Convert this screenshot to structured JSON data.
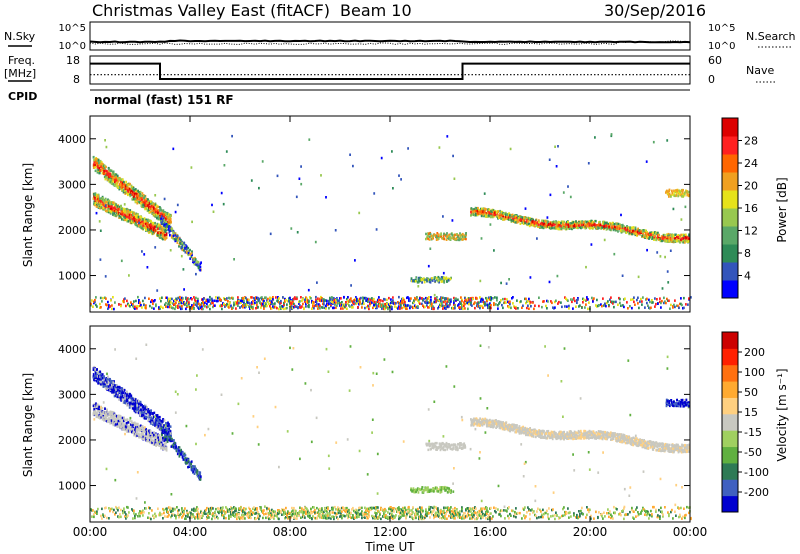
{
  "header": {
    "title": "Christmas Valley East (fitACF)",
    "beam": "Beam 10",
    "date": "30/Sep/2016"
  },
  "top_panels": {
    "nsky_label": "N.Sky",
    "nsearch_label": "N.Search",
    "nsky_ticks": [
      "10^5",
      "10^0"
    ],
    "nsearch_ticks": [
      "10^5",
      "10^0"
    ],
    "freq_label": "Freq.",
    "freq_unit": "[MHz]",
    "freq_ticks": [
      "18",
      "8"
    ],
    "nave_label": "Nave",
    "nave_ticks": [
      "60",
      "0"
    ],
    "cpid_label": "CPID",
    "cpid_value": "normal (fast) 151 RF"
  },
  "colors": {
    "power": [
      "#0000ff",
      "#3355bb",
      "#2e8b57",
      "#5aa868",
      "#98c850",
      "#e6e21a",
      "#f0a020",
      "#ff6600",
      "#ff2020",
      "#dd0000"
    ],
    "velocity": [
      "#0000d0",
      "#4060c0",
      "#2e7a55",
      "#60b040",
      "#a0d060",
      "#c8c8c0",
      "#ffd080",
      "#ffaa30",
      "#ff7010",
      "#ff2000",
      "#cc0000"
    ]
  },
  "chart_data": [
    {
      "type": "heatmap",
      "name": "power",
      "ylabel": "Slant Range [km]",
      "xlabel": "Time UT",
      "x_ticks": [
        "00:00",
        "04:00",
        "08:00",
        "12:00",
        "16:00",
        "20:00",
        "00:00"
      ],
      "y_ticks": [
        "1000",
        "2000",
        "3000",
        "4000"
      ],
      "ylim": [
        200,
        4500
      ],
      "xlim_hours": [
        0,
        24
      ],
      "colorbar_label": "Power [dB]",
      "colorbar_ticks": [
        "28",
        "24",
        "20",
        "16",
        "12",
        "8",
        "4"
      ],
      "colorbar_range": [
        0,
        32
      ]
    },
    {
      "type": "heatmap",
      "name": "velocity",
      "ylabel": "Slant Range [km]",
      "xlabel": "Time UT",
      "x_ticks": [
        "00:00",
        "04:00",
        "08:00",
        "12:00",
        "16:00",
        "20:00",
        "00:00"
      ],
      "y_ticks": [
        "1000",
        "2000",
        "3000",
        "4000"
      ],
      "ylim": [
        200,
        4500
      ],
      "xlim_hours": [
        0,
        24
      ],
      "colorbar_label": "Velocity [m s⁻¹]",
      "colorbar_ticks": [
        "200",
        "100",
        "50",
        "15",
        "-15",
        "-50",
        "-100",
        "-200"
      ]
    }
  ],
  "frequency_series": {
    "segments": [
      {
        "start_h": 0,
        "end_h": 2.8,
        "mhz": 16
      },
      {
        "start_h": 2.8,
        "end_h": 14.9,
        "mhz": 10.5
      },
      {
        "start_h": 14.9,
        "end_h": 24,
        "mhz": 16
      }
    ],
    "nave_level": 20
  }
}
